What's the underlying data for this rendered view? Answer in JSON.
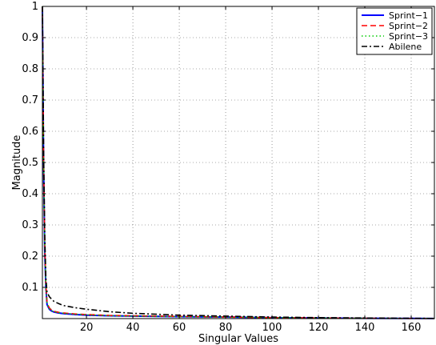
{
  "chart_data": {
    "type": "line",
    "xlabel": "Singular Values",
    "ylabel": "Magnitude",
    "xlim": [
      1,
      170
    ],
    "ylim": [
      0,
      1
    ],
    "xticks": [
      20,
      40,
      60,
      80,
      100,
      120,
      140,
      160
    ],
    "yticks": [
      0.1,
      0.2,
      0.3,
      0.4,
      0.5,
      0.6,
      0.7,
      0.8,
      0.9,
      1
    ],
    "grid": true,
    "legend_position": "top-right",
    "series": [
      {
        "name": "Sprint−1",
        "color": "#0000ff",
        "dash": "solid",
        "x": [
          1,
          1.5,
          2,
          2.5,
          3,
          4,
          5,
          6,
          8,
          10,
          15,
          20,
          30,
          40,
          60,
          80,
          100,
          120,
          140,
          160,
          170
        ],
        "values": [
          1,
          0.5,
          0.22,
          0.1,
          0.045,
          0.03,
          0.024,
          0.021,
          0.018,
          0.016,
          0.013,
          0.011,
          0.009,
          0.008,
          0.006,
          0.005,
          0.003,
          0.002,
          0.001,
          0.0005,
          0.0003
        ]
      },
      {
        "name": "Sprint−2",
        "color": "#ff0000",
        "dash": "dashed",
        "x": [
          1,
          1.5,
          2,
          2.5,
          3,
          4,
          5,
          6,
          8,
          10,
          15,
          20,
          30,
          40,
          60,
          80,
          100,
          120,
          140,
          160,
          170
        ],
        "values": [
          1,
          0.52,
          0.24,
          0.11,
          0.05,
          0.034,
          0.027,
          0.023,
          0.02,
          0.018,
          0.015,
          0.013,
          0.01,
          0.009,
          0.007,
          0.005,
          0.003,
          0.002,
          0.001,
          0.0005,
          0.0003
        ]
      },
      {
        "name": "Sprint−3",
        "color": "#00cc00",
        "dash": "dotted",
        "x": [
          1,
          1.5,
          2,
          2.5,
          3,
          4,
          5,
          6,
          8,
          10,
          15,
          20,
          30,
          40,
          60,
          80,
          100,
          120,
          140,
          160,
          170
        ],
        "values": [
          1,
          0.5,
          0.23,
          0.1,
          0.048,
          0.032,
          0.025,
          0.022,
          0.019,
          0.017,
          0.014,
          0.012,
          0.009,
          0.008,
          0.006,
          0.005,
          0.003,
          0.002,
          0.001,
          0.0005,
          0.0003
        ]
      },
      {
        "name": "Abilene",
        "color": "#000000",
        "dash": "dashdot",
        "x": [
          1,
          1.5,
          2,
          2.5,
          3,
          4,
          5,
          6,
          8,
          10,
          15,
          20,
          30,
          40,
          60,
          80,
          100,
          120,
          140,
          160,
          170
        ],
        "values": [
          1,
          0.55,
          0.27,
          0.13,
          0.085,
          0.07,
          0.062,
          0.055,
          0.048,
          0.042,
          0.035,
          0.03,
          0.022,
          0.017,
          0.011,
          0.008,
          0.005,
          0.003,
          0.002,
          0.001,
          0.0005
        ]
      }
    ]
  }
}
